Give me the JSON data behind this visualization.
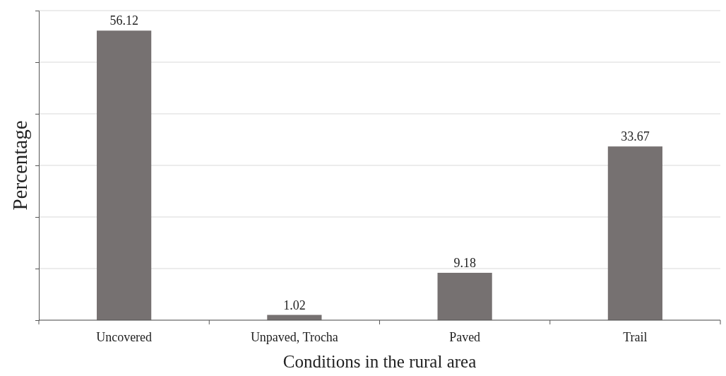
{
  "chart_data": {
    "type": "bar",
    "xlabel": "Conditions in the rural area",
    "ylabel": "Percentage",
    "categories": [
      "Uncovered",
      "Unpaved, Trocha",
      "Paved",
      "Trail"
    ],
    "values": [
      56.12,
      1.02,
      9.18,
      33.67
    ],
    "color": "#767171",
    "data_labels": true,
    "ylim": [
      0,
      60
    ],
    "yticks": [
      {
        "value": 0,
        "label": null
      },
      {
        "value": 10,
        "label": null
      },
      {
        "value": 20,
        "label": null
      },
      {
        "value": 30,
        "label": null
      },
      {
        "value": 40,
        "label": null
      },
      {
        "value": 50,
        "label": null
      },
      {
        "value": 60,
        "label": null
      }
    ],
    "grid": "y",
    "tick_labels": "x"
  }
}
